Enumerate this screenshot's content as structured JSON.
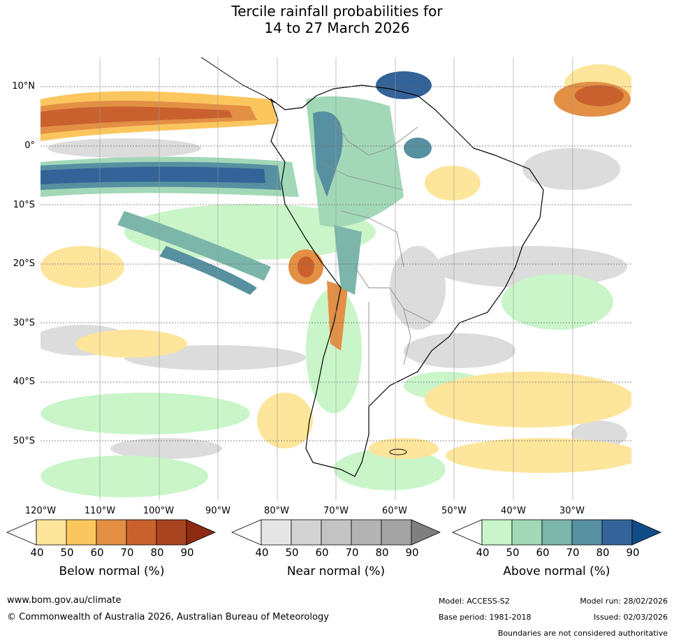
{
  "title": {
    "line1": "Tercile rainfall probabilities for",
    "line2": "14 to 27 March 2026"
  },
  "axes": {
    "lat_labels": [
      "10°N",
      "0°",
      "10°S",
      "20°S",
      "30°S",
      "40°S",
      "50°S"
    ],
    "lon_labels": [
      "120°W",
      "110°W",
      "100°W",
      "90°W",
      "80°W",
      "70°W",
      "60°W",
      "50°W",
      "40°W",
      "30°W"
    ]
  },
  "colorbars": [
    {
      "label": "Below normal (%)",
      "ticks": [
        "40",
        "50",
        "60",
        "70",
        "80",
        "90"
      ],
      "colors": [
        "#ffffff",
        "#fde59b",
        "#fcc65e",
        "#e38f44",
        "#c9612f",
        "#a84420",
        "#8c2a12"
      ]
    },
    {
      "label": "Near normal (%)",
      "ticks": [
        "40",
        "50",
        "60",
        "70",
        "80",
        "90"
      ],
      "colors": [
        "#ffffff",
        "#e6e6e6",
        "#d3d3d3",
        "#c3c3c3",
        "#b3b3b3",
        "#a3a3a3",
        "#7f7f7f"
      ]
    },
    {
      "label": "Above normal (%)",
      "ticks": [
        "40",
        "50",
        "60",
        "70",
        "80",
        "90"
      ],
      "colors": [
        "#ffffff",
        "#c9f5c9",
        "#a2d8b8",
        "#7cb5a9",
        "#5790a0",
        "#336399",
        "#104c87"
      ]
    }
  ],
  "footer": {
    "url": "www.bom.gov.au/climate",
    "copyright": "© Commonwealth of Australia 2026, Australian Bureau of Meteorology",
    "model": "Model: ACCESS-S2",
    "model_run": "Model run: 28/02/2026",
    "base_period": "Base period: 1981-2018",
    "issued": "Issued: 02/03/2026",
    "disclaimer": "Boundaries are not considered authoritative"
  }
}
